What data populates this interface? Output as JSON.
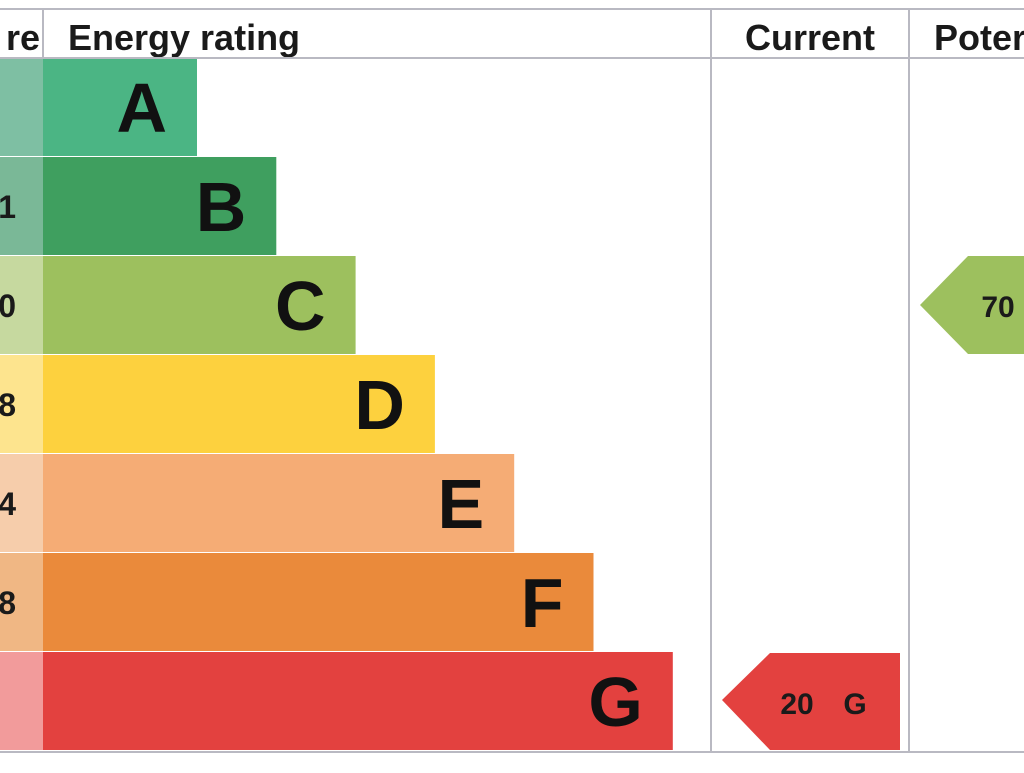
{
  "header": {
    "score_label": "re",
    "rating_label": "Energy rating",
    "current_label": "Current",
    "potential_label": "Poter"
  },
  "chart_data": {
    "type": "bar",
    "title": "",
    "categories": [
      "A",
      "B",
      "C",
      "D",
      "E",
      "F",
      "G"
    ],
    "score_band_labels": [
      "",
      "1",
      "0",
      "8",
      "4",
      "8",
      ""
    ],
    "band_colors": [
      "#4bb584",
      "#3f9f5f",
      "#9dc05e",
      "#fdd13e",
      "#f5ac75",
      "#ea8a3b",
      "#e3413f"
    ],
    "score_cell_colors": [
      "#7ebfa3",
      "#7ab897",
      "#c6d99f",
      "#fde48e",
      "#f6cdab",
      "#f0b784",
      "#f29b9b"
    ],
    "values": [
      1,
      2,
      3,
      4,
      5,
      6,
      7
    ],
    "current": {
      "value": 20,
      "value_label": "20",
      "band": "G",
      "band_label": "G",
      "color": "#e3413f"
    },
    "potential": {
      "value": 70,
      "value_label": "70",
      "band": "C",
      "color": "#9dc05e"
    }
  }
}
